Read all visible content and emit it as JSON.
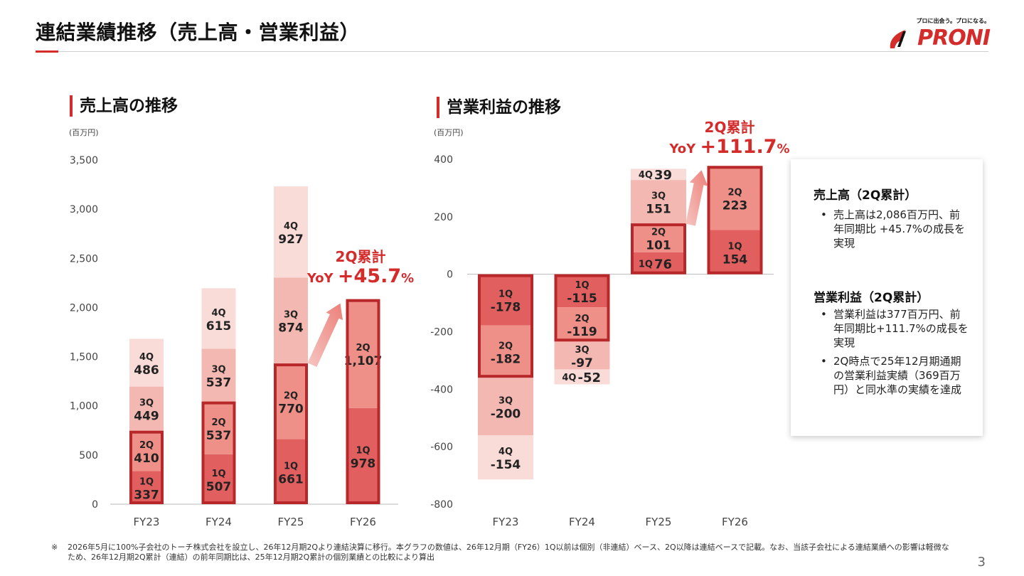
{
  "page": {
    "title": "連結業績推移（売上高・営業利益）",
    "page_number": "3",
    "footnote_mark": "※",
    "footnote": "2026年5月に100%子会社のトーチ株式会社を設立し、26年12月期2Qより連結決算に移行。本グラフの数値は、26年12月期（FY26）1Q以前は個別（非連結）ベース、2Q以降は連結ベースで記載。なお、当該子会社による連結業績への影響は軽微なため、26年12月期2Q累計（連結）の前年同期比は、25年12月期2Q累計の個別業績との比較により算出"
  },
  "logo": {
    "tagline": "プロに出会う。プロになる。",
    "wordmark": "PRONI",
    "icon": "flame-swoosh-icon"
  },
  "colors": {
    "accent": "#d42b2b",
    "q1": "#e25f5f",
    "q2": "#ee9088",
    "q3": "#f4b8b2",
    "q4": "#f9dcd8",
    "highlight": "#b8282b"
  },
  "charts": {
    "sales": {
      "title": "売上高の推移",
      "unit": "(百万円)"
    },
    "op": {
      "title": "営業利益の推移",
      "unit": "(百万円)"
    }
  },
  "chart_data": [
    {
      "type": "bar",
      "stacked": true,
      "title": "売上高の推移",
      "unit": "(百万円)",
      "categories": [
        "FY23",
        "FY24",
        "FY25",
        "FY26"
      ],
      "series": [
        {
          "name": "1Q",
          "values": [
            337,
            507,
            661,
            978
          ]
        },
        {
          "name": "2Q",
          "values": [
            410,
            537,
            770,
            1107
          ]
        },
        {
          "name": "3Q",
          "values": [
            449,
            537,
            874,
            null
          ]
        },
        {
          "name": "4Q",
          "values": [
            486,
            615,
            927,
            null
          ]
        }
      ],
      "value_labels": {
        "1Q": [
          "337",
          "507",
          "661",
          "978"
        ],
        "2Q": [
          "410",
          "537",
          "770",
          "1,107"
        ],
        "3Q": [
          "449",
          "537",
          "874",
          ""
        ],
        "4Q": [
          "486",
          "615",
          "927",
          ""
        ]
      },
      "ylim": [
        0,
        3500
      ],
      "yticks": [
        0,
        500,
        1000,
        1500,
        2000,
        2500,
        3000,
        3500
      ],
      "ytick_labels": [
        "0",
        "500",
        "1,000",
        "1,500",
        "2,000",
        "2,500",
        "3,000",
        "3,500"
      ],
      "highlight": "1Q–2Q cumulative outlined",
      "callout": {
        "line1": "2Q累計",
        "prefix": "YoY ",
        "value": "+45.7",
        "suffix": "%"
      }
    },
    {
      "type": "bar",
      "stacked": true,
      "title": "営業利益の推移",
      "unit": "(百万円)",
      "categories": [
        "FY23",
        "FY24",
        "FY25",
        "FY26"
      ],
      "series": [
        {
          "name": "1Q",
          "values": [
            -178,
            -115,
            76,
            154
          ]
        },
        {
          "name": "2Q",
          "values": [
            -182,
            -119,
            101,
            223
          ]
        },
        {
          "name": "3Q",
          "values": [
            -200,
            -97,
            151,
            null
          ]
        },
        {
          "name": "4Q",
          "values": [
            -154,
            -52,
            39,
            null
          ]
        }
      ],
      "ylim": [
        -800,
        400
      ],
      "yticks": [
        -800,
        -600,
        -400,
        -200,
        0,
        200,
        400
      ],
      "ytick_labels": [
        "-800",
        "-600",
        "-400",
        "-200",
        "0",
        "200",
        "400"
      ],
      "highlight": "1Q–2Q cumulative outlined",
      "callout": {
        "line1": "2Q累計",
        "prefix": "YoY ",
        "value": "+111.7",
        "suffix": "%"
      }
    }
  ],
  "summary": {
    "sales": {
      "heading": "売上高（2Q累計）",
      "bullets": [
        "売上高は2,086百万円、前年同期比 +45.7%の成長を実現"
      ]
    },
    "op": {
      "heading": "営業利益（2Q累計）",
      "bullets": [
        "営業利益は377百万円、前年同期比+111.7%の成長を実現",
        "2Q時点で25年12月期通期の営業利益実績（369百万円）と同水準の実績を達成"
      ]
    }
  }
}
